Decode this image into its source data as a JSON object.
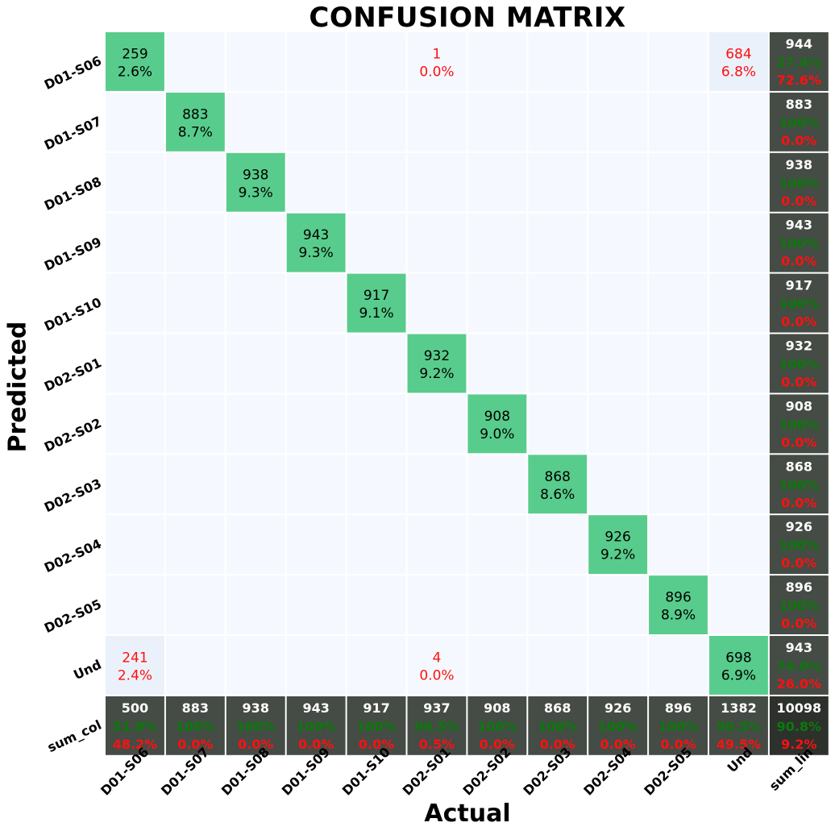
{
  "chart_data": {
    "type": "heatmap",
    "title": "CONFUSION MATRIX",
    "xlabel": "Actual",
    "ylabel": "Predicted",
    "x_categories": [
      "D01-S06",
      "D01-S07",
      "D01-S08",
      "D01-S09",
      "D01-S10",
      "D02-S01",
      "D02-S02",
      "D02-S03",
      "D02-S04",
      "D02-S05",
      "Und",
      "sum_lin"
    ],
    "y_categories": [
      "D01-S06",
      "D01-S07",
      "D01-S08",
      "D01-S09",
      "D01-S10",
      "D02-S01",
      "D02-S02",
      "D02-S03",
      "D02-S04",
      "D02-S05",
      "Und",
      "sum_col"
    ],
    "matrix": [
      [
        259,
        0,
        0,
        0,
        0,
        1,
        0,
        0,
        0,
        0,
        684
      ],
      [
        0,
        883,
        0,
        0,
        0,
        0,
        0,
        0,
        0,
        0,
        0
      ],
      [
        0,
        0,
        938,
        0,
        0,
        0,
        0,
        0,
        0,
        0,
        0
      ],
      [
        0,
        0,
        0,
        943,
        0,
        0,
        0,
        0,
        0,
        0,
        0
      ],
      [
        0,
        0,
        0,
        0,
        917,
        0,
        0,
        0,
        0,
        0,
        0
      ],
      [
        0,
        0,
        0,
        0,
        0,
        932,
        0,
        0,
        0,
        0,
        0
      ],
      [
        0,
        0,
        0,
        0,
        0,
        0,
        908,
        0,
        0,
        0,
        0
      ],
      [
        0,
        0,
        0,
        0,
        0,
        0,
        0,
        868,
        0,
        0,
        0
      ],
      [
        0,
        0,
        0,
        0,
        0,
        0,
        0,
        0,
        926,
        0,
        0
      ],
      [
        0,
        0,
        0,
        0,
        0,
        0,
        0,
        0,
        0,
        896,
        0
      ],
      [
        241,
        0,
        0,
        0,
        0,
        4,
        0,
        0,
        0,
        0,
        698
      ]
    ],
    "cell_percent": [
      [
        "2.6%",
        "",
        "",
        "",
        "",
        "0.0%",
        "",
        "",
        "",
        "",
        "6.8%"
      ],
      [
        "",
        "8.7%",
        "",
        "",
        "",
        "",
        "",
        "",
        "",
        "",
        ""
      ],
      [
        "",
        "",
        "9.3%",
        "",
        "",
        "",
        "",
        "",
        "",
        "",
        ""
      ],
      [
        "",
        "",
        "",
        "9.3%",
        "",
        "",
        "",
        "",
        "",
        "",
        ""
      ],
      [
        "",
        "",
        "",
        "",
        "9.1%",
        "",
        "",
        "",
        "",
        "",
        ""
      ],
      [
        "",
        "",
        "",
        "",
        "",
        "9.2%",
        "",
        "",
        "",
        "",
        ""
      ],
      [
        "",
        "",
        "",
        "",
        "",
        "",
        "9.0%",
        "",
        "",
        "",
        ""
      ],
      [
        "",
        "",
        "",
        "",
        "",
        "",
        "",
        "8.6%",
        "",
        "",
        ""
      ],
      [
        "",
        "",
        "",
        "",
        "",
        "",
        "",
        "",
        "9.2%",
        "",
        ""
      ],
      [
        "",
        "",
        "",
        "",
        "",
        "",
        "",
        "",
        "",
        "8.9%",
        ""
      ],
      [
        "2.4%",
        "",
        "",
        "",
        "",
        "0.0%",
        "",
        "",
        "",
        "",
        "6.9%"
      ]
    ],
    "row_sums": [
      {
        "total": "944",
        "correct": "27.4%",
        "error": "72.6%"
      },
      {
        "total": "883",
        "correct": "100%",
        "error": "0.0%"
      },
      {
        "total": "938",
        "correct": "100%",
        "error": "0.0%"
      },
      {
        "total": "943",
        "correct": "100%",
        "error": "0.0%"
      },
      {
        "total": "917",
        "correct": "100%",
        "error": "0.0%"
      },
      {
        "total": "932",
        "correct": "100%",
        "error": "0.0%"
      },
      {
        "total": "908",
        "correct": "100%",
        "error": "0.0%"
      },
      {
        "total": "868",
        "correct": "100%",
        "error": "0.0%"
      },
      {
        "total": "926",
        "correct": "100%",
        "error": "0.0%"
      },
      {
        "total": "896",
        "correct": "100%",
        "error": "0.0%"
      },
      {
        "total": "943",
        "correct": "74.0%",
        "error": "26.0%"
      }
    ],
    "col_sums": [
      {
        "total": "500",
        "correct": "51.8%",
        "error": "48.2%"
      },
      {
        "total": "883",
        "correct": "100%",
        "error": "0.0%"
      },
      {
        "total": "938",
        "correct": "100%",
        "error": "0.0%"
      },
      {
        "total": "943",
        "correct": "100%",
        "error": "0.0%"
      },
      {
        "total": "917",
        "correct": "100%",
        "error": "0.0%"
      },
      {
        "total": "937",
        "correct": "99.5%",
        "error": "0.5%"
      },
      {
        "total": "908",
        "correct": "100%",
        "error": "0.0%"
      },
      {
        "total": "868",
        "correct": "100%",
        "error": "0.0%"
      },
      {
        "total": "926",
        "correct": "100%",
        "error": "0.0%"
      },
      {
        "total": "896",
        "correct": "100%",
        "error": "0.0%"
      },
      {
        "total": "1382",
        "correct": "50.5%",
        "error": "49.5%"
      }
    ],
    "grand_total": {
      "total": "10098",
      "correct": "90.8%",
      "error": "9.2%"
    },
    "colors": {
      "diagonal": "#58cc8c",
      "empty": "#f5f9ff",
      "offdiag_light": "#eaf1fb",
      "sum_cell": "#454b45",
      "grand_cell": "#2c312c",
      "correct_text": "#0a7a0a",
      "error_text": "#ff1010",
      "sum_total_text": "#ffffff",
      "cell_text": "#000000"
    },
    "grid": false,
    "legend": "none"
  }
}
